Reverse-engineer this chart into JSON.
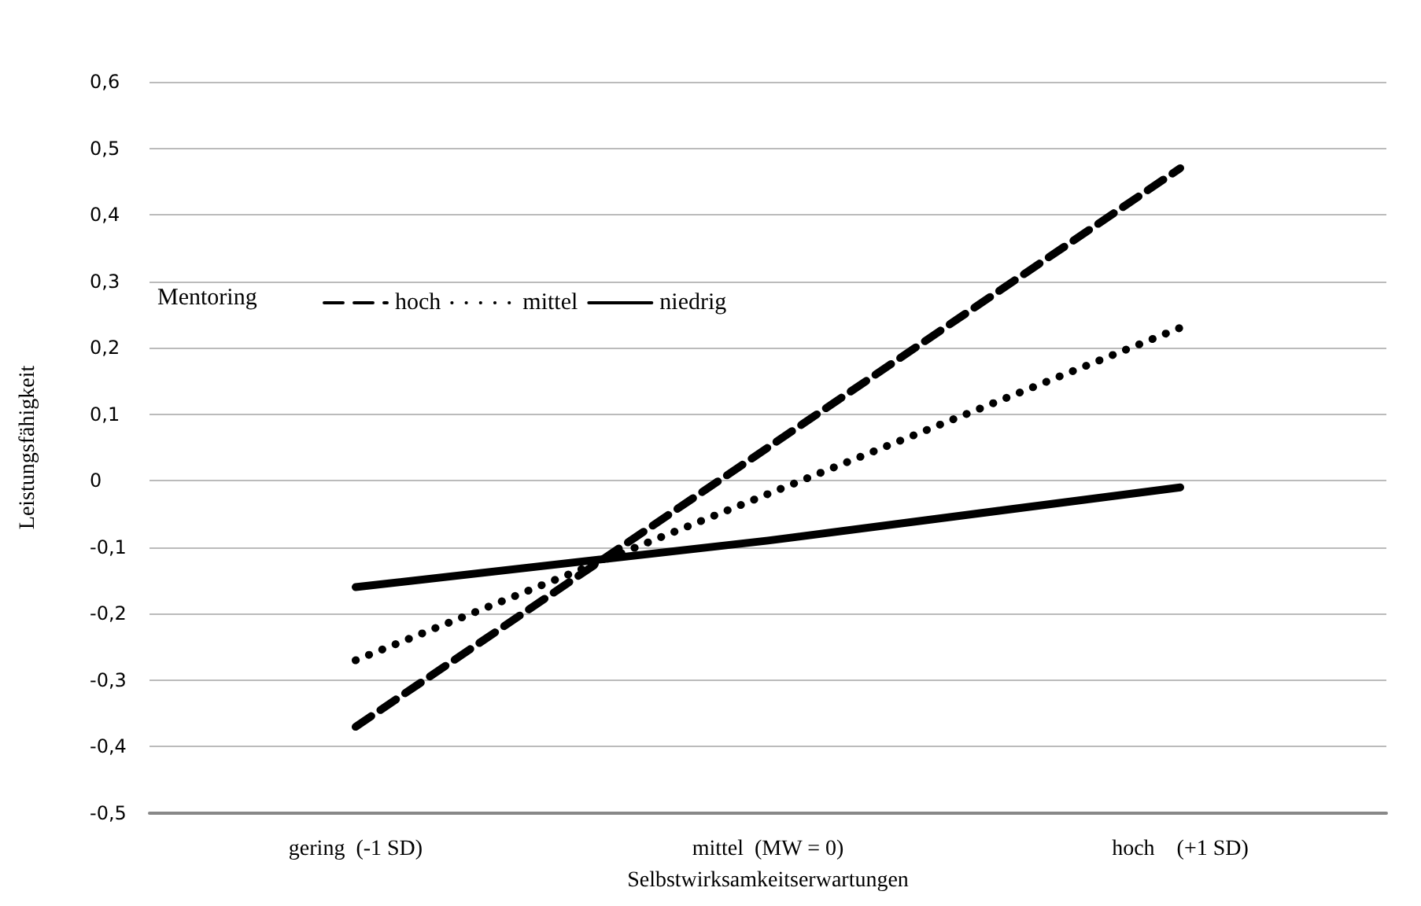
{
  "chart_data": {
    "type": "line",
    "xlabel": "Selbstwirksamkeitserwartungen",
    "ylabel": "Leistungsfähigkeit",
    "legend_title": "Mentoring",
    "categories": [
      "gering  (-1 SD)",
      "mittel  (MW = 0)",
      "hoch    (+1 SD)"
    ],
    "series": [
      {
        "name": "hoch",
        "color": "#000000",
        "line_style": "dashed",
        "values": [
          -0.37,
          0.05,
          0.47
        ]
      },
      {
        "name": "mittel",
        "color": "#000000",
        "line_style": "dotted",
        "values": [
          -0.27,
          -0.02,
          0.23
        ]
      },
      {
        "name": "niedrig",
        "color": "#000000",
        "line_style": "solid",
        "values": [
          -0.16,
          -0.09,
          -0.01
        ]
      }
    ],
    "ylim": [
      -0.5,
      0.6
    ],
    "yticks": [
      {
        "value": -0.5,
        "label": "-0,5"
      },
      {
        "value": -0.4,
        "label": "-0,4"
      },
      {
        "value": -0.3,
        "label": "-0,3"
      },
      {
        "value": -0.2,
        "label": "-0,2"
      },
      {
        "value": -0.1,
        "label": "-0,1"
      },
      0,
      {
        "value": 0.1,
        "label": "0,1"
      },
      {
        "value": 0.2,
        "label": "0,2"
      },
      {
        "value": 0.3,
        "label": "0,3"
      },
      {
        "value": 0.4,
        "label": "0,4"
      },
      {
        "value": 0.5,
        "label": "0,5"
      },
      {
        "value": 0.6,
        "label": "0,6"
      }
    ],
    "grid": "y",
    "legend": "top left",
    "marker": "none"
  }
}
